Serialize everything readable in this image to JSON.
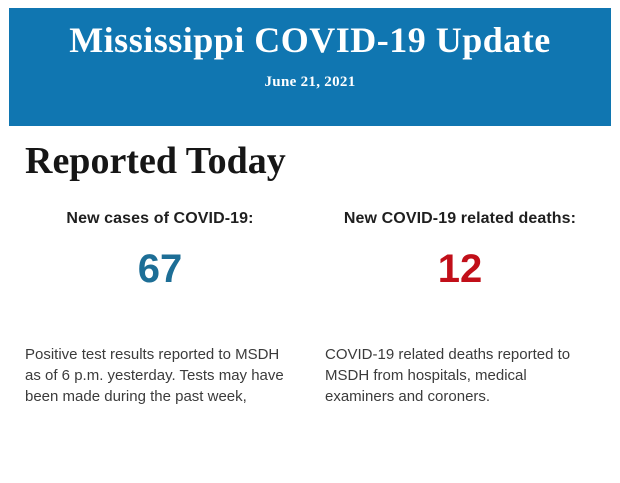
{
  "banner": {
    "title": "Mississippi COVID-19 Update",
    "date": "June 21, 2021",
    "background_color": "#1076B1",
    "text_color": "#FFFFFF"
  },
  "report": {
    "heading": "Reported Today",
    "stats": [
      {
        "label": "New cases of COVID-19:",
        "value": "67",
        "value_color": "#1D6E96",
        "description": "Positive test results reported to MSDH as of 6 p.m. yesterday. Tests may have been made during the past week,"
      },
      {
        "label": "New COVID-19 related deaths:",
        "value": "12",
        "value_color": "#C10F19",
        "description": "COVID-19 related deaths reported to MSDH from hospitals, medical examiners and coroners."
      }
    ]
  }
}
